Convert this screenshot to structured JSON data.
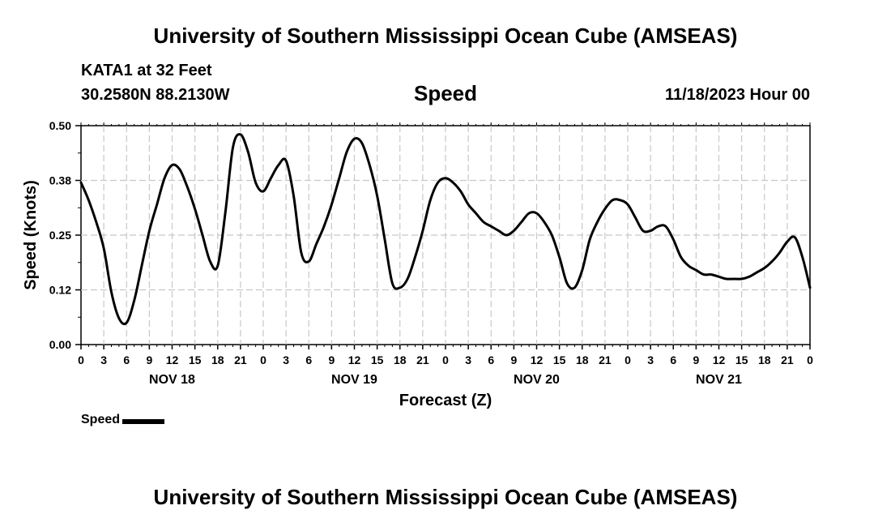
{
  "header": {
    "title": "University of Southern Mississippi Ocean Cube (AMSEAS)",
    "station": "KATA1 at 32 Feet",
    "coords": "30.2580N  88.2130W",
    "chart_title": "Speed",
    "datetime": "11/18/2023 Hour 00"
  },
  "footer": {
    "title": "University of Southern Mississippi Ocean Cube (AMSEAS)"
  },
  "legend": {
    "label": "Speed"
  },
  "chart_data": {
    "type": "line",
    "title": "Speed",
    "xlabel": "Forecast (Z)",
    "ylabel": "Speed (Knots)",
    "xlim": [
      0,
      96
    ],
    "ylim": [
      0,
      0.5
    ],
    "yticks": [
      0,
      0.125,
      0.25,
      0.375,
      0.5
    ],
    "ytick_labels": [
      "0.00",
      "0.12",
      "0.25",
      "0.38",
      "0.50"
    ],
    "xtick_step_hours": 3,
    "xtick_labels": [
      "0",
      "3",
      "6",
      "9",
      "12",
      "15",
      "18",
      "21",
      "0",
      "3",
      "6",
      "9",
      "12",
      "15",
      "18",
      "21",
      "0",
      "3",
      "6",
      "9",
      "12",
      "15",
      "18",
      "21",
      "0",
      "3",
      "6",
      "9",
      "12",
      "15",
      "18",
      "21",
      "0"
    ],
    "day_labels": [
      {
        "label": "NOV 18",
        "hour": 12
      },
      {
        "label": "NOV 19",
        "hour": 36
      },
      {
        "label": "NOV 20",
        "hour": 60
      },
      {
        "label": "NOV 21",
        "hour": 84
      }
    ],
    "grid": true,
    "line_color": "#000000",
    "series": [
      {
        "name": "Speed",
        "x": [
          0,
          1,
          2,
          3,
          4,
          5,
          6,
          7,
          8,
          9,
          10,
          11,
          12,
          13,
          14,
          15,
          16,
          17,
          18,
          19,
          20,
          21,
          22,
          23,
          24,
          25,
          26,
          27,
          28,
          29,
          30,
          31,
          32,
          33,
          34,
          35,
          36,
          37,
          38,
          39,
          40,
          41,
          42,
          43,
          44,
          45,
          46,
          47,
          48,
          49,
          50,
          51,
          52,
          53,
          54,
          55,
          56,
          57,
          58,
          59,
          60,
          61,
          62,
          63,
          64,
          65,
          66,
          67,
          68,
          69,
          70,
          71,
          72,
          73,
          74,
          75,
          76,
          77,
          78,
          79,
          80,
          81,
          82,
          83,
          84,
          85,
          86,
          87,
          88,
          89,
          90,
          91,
          92,
          93,
          94,
          95,
          96
        ],
        "values": [
          0.37,
          0.33,
          0.28,
          0.22,
          0.12,
          0.06,
          0.05,
          0.1,
          0.18,
          0.26,
          0.32,
          0.38,
          0.41,
          0.4,
          0.36,
          0.31,
          0.25,
          0.19,
          0.18,
          0.3,
          0.45,
          0.48,
          0.44,
          0.37,
          0.35,
          0.38,
          0.41,
          0.42,
          0.34,
          0.21,
          0.19,
          0.23,
          0.27,
          0.32,
          0.38,
          0.44,
          0.47,
          0.46,
          0.41,
          0.34,
          0.24,
          0.14,
          0.13,
          0.15,
          0.2,
          0.26,
          0.33,
          0.37,
          0.38,
          0.37,
          0.35,
          0.32,
          0.3,
          0.28,
          0.27,
          0.26,
          0.25,
          0.26,
          0.28,
          0.3,
          0.3,
          0.28,
          0.25,
          0.2,
          0.14,
          0.13,
          0.17,
          0.24,
          0.28,
          0.31,
          0.33,
          0.33,
          0.32,
          0.29,
          0.26,
          0.26,
          0.27,
          0.27,
          0.24,
          0.2,
          0.18,
          0.17,
          0.16,
          0.16,
          0.155,
          0.15,
          0.15,
          0.15,
          0.155,
          0.165,
          0.175,
          0.19,
          0.21,
          0.235,
          0.245,
          0.2,
          0.13
        ]
      }
    ]
  }
}
